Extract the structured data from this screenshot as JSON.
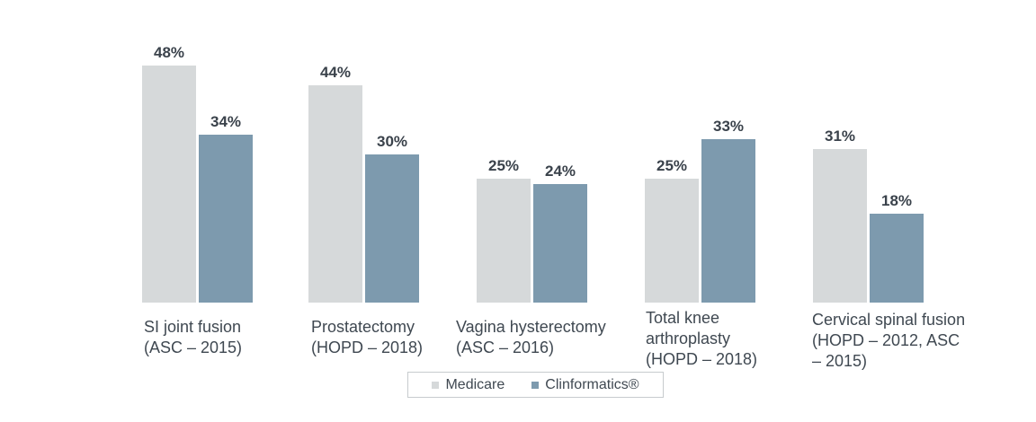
{
  "chart_data": {
    "type": "bar",
    "title": "",
    "xlabel": "",
    "ylabel": "",
    "value_suffix": "%",
    "ylim": [
      0,
      50
    ],
    "grid": false,
    "axes_visible": false,
    "legend_position": "bottom",
    "categories": [
      "SI joint fusion (ASC – 2015)",
      "Prostatectomy (HOPD – 2018)",
      "Vagina hysterectomy (ASC – 2016)",
      "Total knee arthroplasty (HOPD – 2018)",
      "Cervical spinal fusion (HOPD – 2012, ASC – 2015)"
    ],
    "category_lines": [
      [
        "SI joint fusion",
        "(ASC – 2015)"
      ],
      [
        "Prostatectomy",
        "(HOPD – 2018)"
      ],
      [
        "Vagina hysterectomy",
        "(ASC – 2016)"
      ],
      [
        "Total knee",
        "arthroplasty",
        "(HOPD – 2018)"
      ],
      [
        "Cervical spinal fusion",
        "(HOPD – 2012, ASC",
        "– 2015)"
      ]
    ],
    "series": [
      {
        "name": "Medicare",
        "color": "#d6d9da",
        "values": [
          48,
          44,
          25,
          25,
          31
        ]
      },
      {
        "name": "Clinformatics®",
        "color": "#7d9aae",
        "values": [
          34,
          30,
          24,
          33,
          18
        ]
      }
    ],
    "data_labels": [
      "48%",
      "34%",
      "44%",
      "30%",
      "25%",
      "24%",
      "25%",
      "33%",
      "31%",
      "18%"
    ]
  },
  "colors": {
    "background": "#ffffff",
    "text": "#3f4851",
    "value_text": "#3a424b",
    "legend_border": "#c7cbce"
  }
}
